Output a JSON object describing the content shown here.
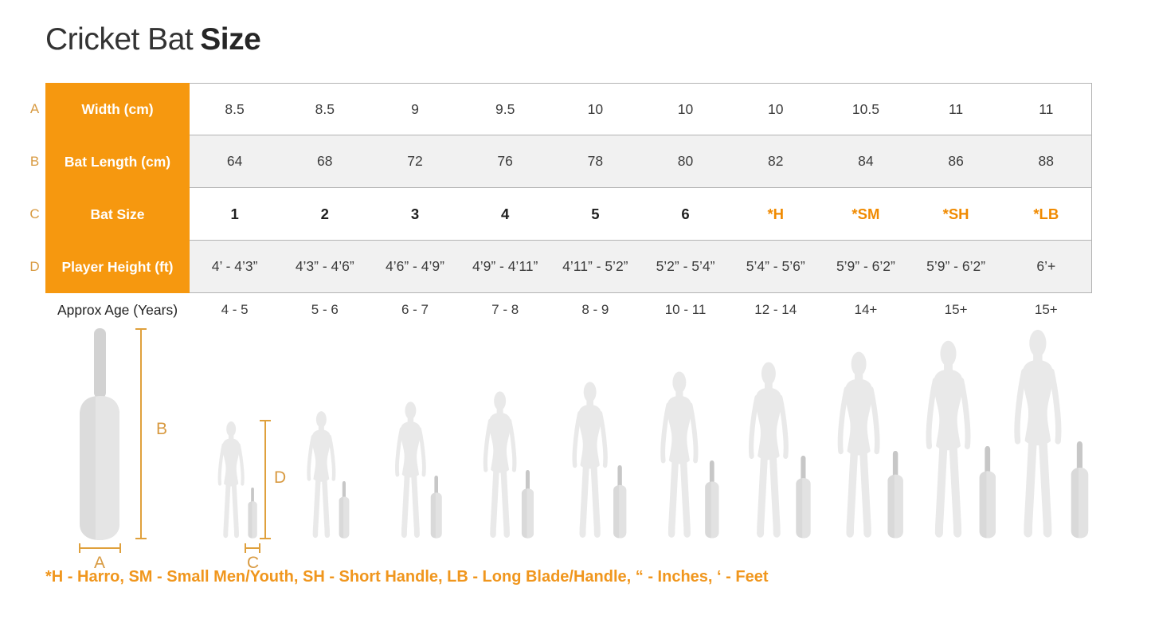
{
  "title": {
    "regular": "Cricket Bat",
    "bold": "Size"
  },
  "colors": {
    "brand_orange": "#F6980F",
    "accent_orange": "#F08A00",
    "dimension_orange": "#DFA03C",
    "footnote_orange": "#F0961D",
    "row_alt_gray": "#f1f1f1",
    "silhouette_gray": "#e9e9e9"
  },
  "chart_data": {
    "type": "table",
    "title": "Cricket Bat Size",
    "rows": [
      {
        "letter": "A",
        "label": "Width (cm)",
        "values": [
          "8.5",
          "8.5",
          "9",
          "9.5",
          "10",
          "10",
          "10",
          "10.5",
          "11",
          "11"
        ]
      },
      {
        "letter": "B",
        "label": "Bat Length (cm)",
        "values": [
          "64",
          "68",
          "72",
          "76",
          "78",
          "80",
          "82",
          "84",
          "86",
          "88"
        ]
      },
      {
        "letter": "C",
        "label": "Bat Size",
        "emphasis": true,
        "values": [
          "1",
          "2",
          "3",
          "4",
          "5",
          "6",
          "*H",
          "*SM",
          "*SH",
          "*LB"
        ]
      },
      {
        "letter": "D",
        "label": "Player Height (ft)",
        "values": [
          "4’ - 4’3”",
          "4’3” - 4’6”",
          "4’6” - 4’9”",
          "4’9” - 4’11”",
          "4’11” - 5’2”",
          "5’2” - 5’4”",
          "5’4” - 5’6”",
          "5’9” - 6’2”",
          "5’9” - 6’2”",
          "6’+"
        ]
      },
      {
        "letter": "",
        "label": "Approx Age (Years)",
        "outside_table": true,
        "values": [
          "4 - 5",
          "5 - 6",
          "6 - 7",
          "7 - 8",
          "8 - 9",
          "10 - 11",
          "12 - 14",
          "14+",
          "15+",
          "15+"
        ]
      }
    ]
  },
  "diagram": {
    "labels": {
      "a": "A",
      "b": "B",
      "c": "C",
      "d": "D"
    }
  },
  "footnote": "*H - Harro, SM - Small Men/Youth, SH - Short Handle,  LB - Long Blade/Handle, “ - Inches, ‘ - Feet"
}
